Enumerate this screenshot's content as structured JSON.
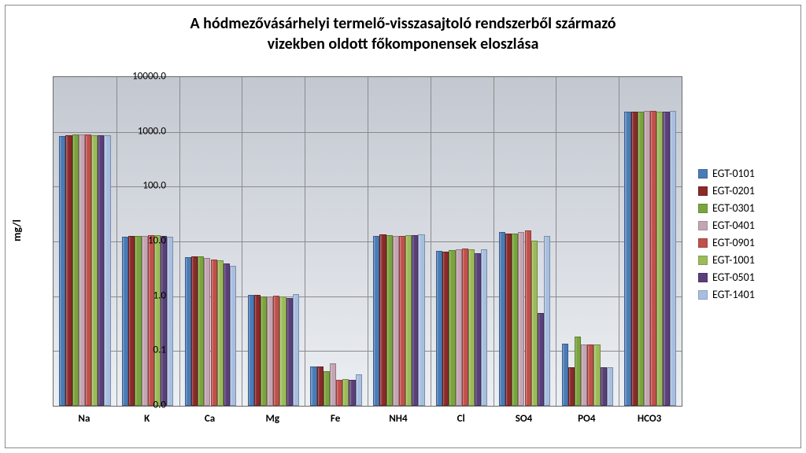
{
  "title_line1": "A hódmezővásárhelyi termelő-visszasajtoló rendszerből származó",
  "title_line2": "vizekben oldott főkomponensek eloszlása",
  "ylabel": "mg/l",
  "chart": {
    "type": "bar",
    "yscale": "log",
    "ylim_min_label": "0.0",
    "ylim_max_label": "10000.0",
    "log_decade_min": -2,
    "log_decade_max": 4,
    "ytick_labels": [
      "0.0",
      "0.1",
      "1.0",
      "10.0",
      "100.0",
      "1000.0",
      "10000.0"
    ],
    "background_gradient_top": "#c3c8d0",
    "background_gradient_bottom": "#eceff3",
    "grid_color": "#8a8a8a",
    "categories": [
      "Na",
      "K",
      "Ca",
      "Mg",
      "Fe",
      "NH4",
      "Cl",
      "SO4",
      "PO4",
      "HCO3"
    ],
    "series": [
      {
        "name": "EGT-0101",
        "color": "#4a7bb6",
        "values": [
          850,
          12,
          5.2,
          1.05,
          0.052,
          12.5,
          6.8,
          15,
          0.135,
          2350
        ]
      },
      {
        "name": "EGT-0201",
        "color": "#8a2a2b",
        "values": [
          870,
          12.5,
          5.3,
          1.06,
          0.053,
          13.5,
          6.5,
          14,
          0.05,
          2350
        ]
      },
      {
        "name": "EGT-0301",
        "color": "#7aa43d",
        "values": [
          890,
          12.5,
          5.4,
          1.0,
          0.043,
          13.0,
          7.0,
          14,
          0.185,
          2350
        ]
      },
      {
        "name": "EGT-0401",
        "color": "#c3a5b4",
        "values": [
          900,
          12.5,
          5.0,
          1.0,
          0.06,
          12.5,
          7.2,
          15,
          0.13,
          2400
        ]
      },
      {
        "name": "EGT-0901",
        "color": "#c0504d",
        "values": [
          905,
          13.0,
          4.7,
          1.03,
          0.03,
          12.5,
          7.4,
          16,
          0.13,
          2400
        ]
      },
      {
        "name": "EGT-1001",
        "color": "#9bbb59",
        "values": [
          880,
          13.0,
          4.5,
          1.0,
          0.031,
          13.0,
          7.2,
          10.5,
          0.13,
          2350
        ]
      },
      {
        "name": "EGT-0501",
        "color": "#5a3f7a",
        "values": [
          860,
          12.5,
          4.0,
          0.92,
          0.03,
          13.0,
          6.0,
          0.5,
          0.05,
          2300
        ]
      },
      {
        "name": "EGT-1401",
        "color": "#a7bedf",
        "values": [
          855,
          12.0,
          3.6,
          1.1,
          0.037,
          13.5,
          7.2,
          12.5,
          0.05,
          2400
        ]
      }
    ],
    "bar_group_gap_ratio": 0.18,
    "title_fontsize": 20,
    "label_fontsize": 13
  }
}
